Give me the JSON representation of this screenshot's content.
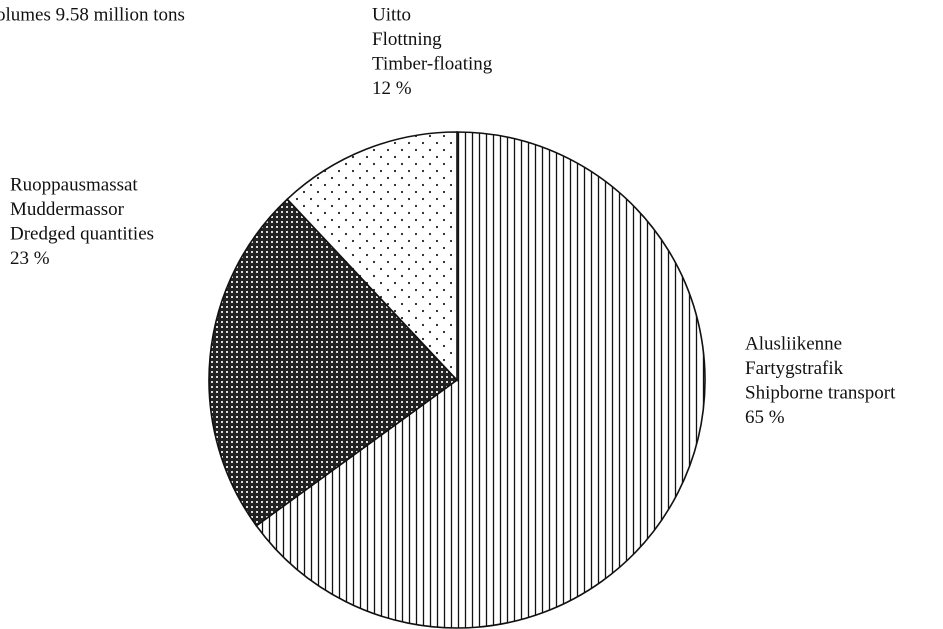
{
  "chart_data": {
    "type": "pie",
    "title": "olumes 9.58 million tons",
    "categories": [
      [
        "Alusliikenne",
        "Fartygstrafik",
        "Shipborne transport"
      ],
      [
        "Ruoppausmassat",
        "Muddermassor",
        "Dredged quantities"
      ],
      [
        "Uitto",
        "Flottning",
        "Timber-floating"
      ]
    ],
    "values": [
      65,
      23,
      12
    ],
    "value_labels": [
      "65 %",
      "23 %",
      "12 %"
    ]
  }
}
